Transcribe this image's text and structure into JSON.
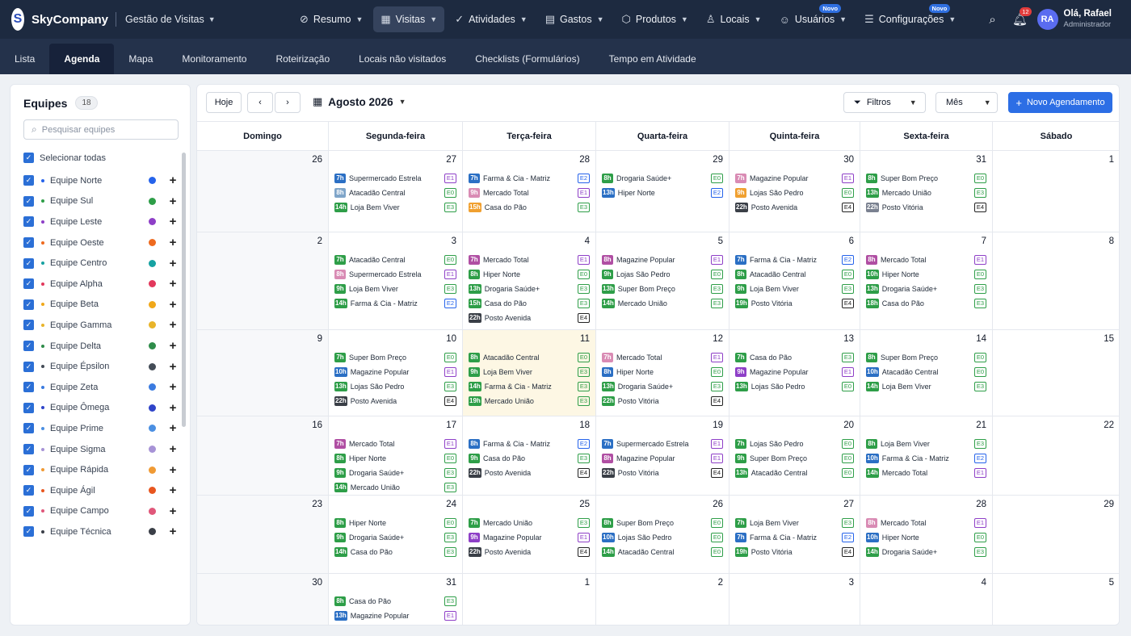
{
  "app": {
    "brand": "SkyCompany",
    "logo_letter": "S",
    "module": "Gestão de Visitas"
  },
  "nav": [
    {
      "label": "Resumo",
      "icon": "dashboard-icon"
    },
    {
      "label": "Visitas",
      "icon": "calendar-icon",
      "active": true
    },
    {
      "label": "Atividades",
      "icon": "check-circle-icon"
    },
    {
      "label": "Gastos",
      "icon": "wallet-icon"
    },
    {
      "label": "Produtos",
      "icon": "box-icon"
    },
    {
      "label": "Locais",
      "icon": "user-pin-icon"
    },
    {
      "label": "Usuários",
      "icon": "users-icon",
      "badge": "Novo"
    },
    {
      "label": "Configurações",
      "icon": "settings-icon",
      "badge": "Novo"
    }
  ],
  "notifications": "12",
  "user": {
    "initials": "RA",
    "greeting": "Olá, Rafael",
    "role": "Administrador"
  },
  "subnav": [
    "Lista",
    "Agenda",
    "Mapa",
    "Monitoramento",
    "Roteirização",
    "Locais não visitados",
    "Checklists (Formulários)",
    "Tempo em Atividade"
  ],
  "sidebar": {
    "title": "Equipes",
    "count": "18",
    "search_placeholder": "Pesquisar equipes",
    "select_all": "Selecionar todas",
    "teams": [
      {
        "name": "Equipe Norte",
        "color": "#2563eb"
      },
      {
        "name": "Equipe Sul",
        "color": "#2e9e48"
      },
      {
        "name": "Equipe Leste",
        "color": "#8e3fc7"
      },
      {
        "name": "Equipe Oeste",
        "color": "#ee6a1f"
      },
      {
        "name": "Equipe Centro",
        "color": "#17a2a2"
      },
      {
        "name": "Equipe Alpha",
        "color": "#e2385c"
      },
      {
        "name": "Equipe Beta",
        "color": "#f0a81a"
      },
      {
        "name": "Equipe Gamma",
        "color": "#e8b42a"
      },
      {
        "name": "Equipe Delta",
        "color": "#2e8c4a"
      },
      {
        "name": "Equipe Épsilon",
        "color": "#444c57"
      },
      {
        "name": "Equipe Zeta",
        "color": "#3b7be0"
      },
      {
        "name": "Equipe Ômega",
        "color": "#2f44c9"
      },
      {
        "name": "Equipe Prime",
        "color": "#4b8fe2"
      },
      {
        "name": "Equipe Sigma",
        "color": "#a793d6"
      },
      {
        "name": "Equipe Rápida",
        "color": "#f09a34"
      },
      {
        "name": "Equipe Ágil",
        "color": "#e8561f"
      },
      {
        "name": "Equipe Campo",
        "color": "#e0577a"
      },
      {
        "name": "Equipe Técnica",
        "color": "#3a3f47"
      }
    ]
  },
  "calendar": {
    "today_label": "Hoje",
    "month": "Agosto 2026",
    "filters_label": "Filtros",
    "view_label": "Mês",
    "new_label": "Novo Agendamento",
    "weekdays": [
      "Domingo",
      "Segunda-feira",
      "Terça-feira",
      "Quarta-feira",
      "Quinta-feira",
      "Sexta-feira",
      "Sábado"
    ],
    "tag_colors": {
      "E0": "#2e9e48",
      "E1": "#8e3fc7",
      "E2": "#2563eb",
      "E3": "#2e9e48",
      "E4": "#222222"
    },
    "weeks": [
      [
        {
          "d": "26"
        },
        {
          "d": "27",
          "ev": [
            {
              "t": "7h",
              "n": "Supermercado Estrela",
              "g": "E1",
              "c": "#2b6fc4"
            },
            {
              "t": "8h",
              "n": "Atacadão Central",
              "g": "E0",
              "c": "#7fa5c9"
            },
            {
              "t": "14h",
              "n": "Loja Bem Viver",
              "g": "E3",
              "c": "#2e9e48"
            }
          ]
        },
        {
          "d": "28",
          "ev": [
            {
              "t": "7h",
              "n": "Farma & Cia - Matriz",
              "g": "E2",
              "c": "#2b6fc4"
            },
            {
              "t": "9h",
              "n": "Mercado Total",
              "g": "E1",
              "c": "#d98bb4"
            },
            {
              "t": "15h",
              "n": "Casa do Pão",
              "g": "E3",
              "c": "#f0a030"
            }
          ]
        },
        {
          "d": "29",
          "ev": [
            {
              "t": "8h",
              "n": "Drogaria Saúde+",
              "g": "E0",
              "c": "#2e9e48"
            },
            {
              "t": "13h",
              "n": "Hiper Norte",
              "g": "E2",
              "c": "#2b6fc4"
            }
          ]
        },
        {
          "d": "30",
          "ev": [
            {
              "t": "7h",
              "n": "Magazine Popular",
              "g": "E1",
              "c": "#d98bb4"
            },
            {
              "t": "9h",
              "n": "Lojas São Pedro",
              "g": "E0",
              "c": "#f0a030"
            },
            {
              "t": "22h",
              "n": "Posto Avenida",
              "g": "E4",
              "c": "#3a3f47"
            }
          ]
        },
        {
          "d": "31",
          "ev": [
            {
              "t": "8h",
              "n": "Super Bom Preço",
              "g": "E0",
              "c": "#2e9e48"
            },
            {
              "t": "13h",
              "n": "Mercado União",
              "g": "E3",
              "c": "#2e9e48"
            },
            {
              "t": "22h",
              "n": "Posto Vitória",
              "g": "E4",
              "c": "#7a8190"
            }
          ]
        },
        {
          "d": "1"
        }
      ],
      [
        {
          "d": "2"
        },
        {
          "d": "3",
          "ev": [
            {
              "t": "7h",
              "n": "Atacadão Central",
              "g": "E0",
              "c": "#2e9e48"
            },
            {
              "t": "8h",
              "n": "Supermercado Estrela",
              "g": "E1",
              "c": "#d98bb4"
            },
            {
              "t": "9h",
              "n": "Loja Bem Viver",
              "g": "E3",
              "c": "#2e9e48"
            },
            {
              "t": "14h",
              "n": "Farma & Cia - Matriz",
              "g": "E2",
              "c": "#2e9e48"
            }
          ]
        },
        {
          "d": "4",
          "ev": [
            {
              "t": "7h",
              "n": "Mercado Total",
              "g": "E1",
              "c": "#b04fa3"
            },
            {
              "t": "8h",
              "n": "Hiper Norte",
              "g": "E0",
              "c": "#2e9e48"
            },
            {
              "t": "13h",
              "n": "Drogaria Saúde+",
              "g": "E3",
              "c": "#2e9e48"
            },
            {
              "t": "15h",
              "n": "Casa do Pão",
              "g": "E3",
              "c": "#2e9e48"
            },
            {
              "t": "22h",
              "n": "Posto Avenida",
              "g": "E4",
              "c": "#3a3f47"
            }
          ]
        },
        {
          "d": "5",
          "ev": [
            {
              "t": "8h",
              "n": "Magazine Popular",
              "g": "E1",
              "c": "#b04fa3"
            },
            {
              "t": "9h",
              "n": "Lojas São Pedro",
              "g": "E0",
              "c": "#2e9e48"
            },
            {
              "t": "13h",
              "n": "Super Bom Preço",
              "g": "E3",
              "c": "#2e9e48"
            },
            {
              "t": "14h",
              "n": "Mercado União",
              "g": "E3",
              "c": "#2e9e48"
            }
          ]
        },
        {
          "d": "6",
          "ev": [
            {
              "t": "7h",
              "n": "Farma & Cia - Matriz",
              "g": "E2",
              "c": "#2b6fc4"
            },
            {
              "t": "8h",
              "n": "Atacadão Central",
              "g": "E0",
              "c": "#2e9e48"
            },
            {
              "t": "9h",
              "n": "Loja Bem Viver",
              "g": "E3",
              "c": "#2e9e48"
            },
            {
              "t": "19h",
              "n": "Posto Vitória",
              "g": "E4",
              "c": "#2e9e48"
            }
          ]
        },
        {
          "d": "7",
          "ev": [
            {
              "t": "8h",
              "n": "Mercado Total",
              "g": "E1",
              "c": "#b04fa3"
            },
            {
              "t": "10h",
              "n": "Hiper Norte",
              "g": "E0",
              "c": "#2e9e48"
            },
            {
              "t": "13h",
              "n": "Drogaria Saúde+",
              "g": "E3",
              "c": "#2e9e48"
            },
            {
              "t": "18h",
              "n": "Casa do Pão",
              "g": "E3",
              "c": "#2e9e48"
            }
          ]
        },
        {
          "d": "8"
        }
      ],
      [
        {
          "d": "9"
        },
        {
          "d": "10",
          "ev": [
            {
              "t": "7h",
              "n": "Super Bom Preço",
              "g": "E0",
              "c": "#2e9e48"
            },
            {
              "t": "10h",
              "n": "Magazine Popular",
              "g": "E1",
              "c": "#2b6fc4"
            },
            {
              "t": "13h",
              "n": "Lojas São Pedro",
              "g": "E3",
              "c": "#2e9e48"
            },
            {
              "t": "22h",
              "n": "Posto Avenida",
              "g": "E4",
              "c": "#3a3f47"
            }
          ]
        },
        {
          "d": "11",
          "today": true,
          "ev": [
            {
              "t": "8h",
              "n": "Atacadão Central",
              "g": "E0",
              "c": "#2e9e48"
            },
            {
              "t": "9h",
              "n": "Loja Bem Viver",
              "g": "E3",
              "c": "#2e9e48"
            },
            {
              "t": "14h",
              "n": "Farma & Cia - Matriz",
              "g": "E3",
              "c": "#2e9e48"
            },
            {
              "t": "19h",
              "n": "Mercado União",
              "g": "E3",
              "c": "#2e9e48"
            }
          ]
        },
        {
          "d": "12",
          "ev": [
            {
              "t": "7h",
              "n": "Mercado Total",
              "g": "E1",
              "c": "#d98bb4"
            },
            {
              "t": "8h",
              "n": "Hiper Norte",
              "g": "E0",
              "c": "#2b6fc4"
            },
            {
              "t": "13h",
              "n": "Drogaria Saúde+",
              "g": "E3",
              "c": "#2e9e48"
            },
            {
              "t": "22h",
              "n": "Posto Vitória",
              "g": "E4",
              "c": "#2e9e48"
            }
          ]
        },
        {
          "d": "13",
          "ev": [
            {
              "t": "7h",
              "n": "Casa do Pão",
              "g": "E3",
              "c": "#2e9e48"
            },
            {
              "t": "9h",
              "n": "Magazine Popular",
              "g": "E1",
              "c": "#8e3fc7"
            },
            {
              "t": "13h",
              "n": "Lojas São Pedro",
              "g": "E0",
              "c": "#2e9e48"
            }
          ]
        },
        {
          "d": "14",
          "ev": [
            {
              "t": "8h",
              "n": "Super Bom Preço",
              "g": "E0",
              "c": "#2e9e48"
            },
            {
              "t": "10h",
              "n": "Atacadão Central",
              "g": "E0",
              "c": "#2b6fc4"
            },
            {
              "t": "14h",
              "n": "Loja Bem Viver",
              "g": "E3",
              "c": "#2e9e48"
            }
          ]
        },
        {
          "d": "15"
        }
      ],
      [
        {
          "d": "16"
        },
        {
          "d": "17",
          "ev": [
            {
              "t": "7h",
              "n": "Mercado Total",
              "g": "E1",
              "c": "#b04fa3"
            },
            {
              "t": "8h",
              "n": "Hiper Norte",
              "g": "E0",
              "c": "#2e9e48"
            },
            {
              "t": "9h",
              "n": "Drogaria Saúde+",
              "g": "E3",
              "c": "#2e9e48"
            },
            {
              "t": "14h",
              "n": "Mercado União",
              "g": "E3",
              "c": "#2e9e48"
            }
          ]
        },
        {
          "d": "18",
          "ev": [
            {
              "t": "8h",
              "n": "Farma & Cia - Matriz",
              "g": "E2",
              "c": "#2b6fc4"
            },
            {
              "t": "9h",
              "n": "Casa do Pão",
              "g": "E3",
              "c": "#2e9e48"
            },
            {
              "t": "22h",
              "n": "Posto Avenida",
              "g": "E4",
              "c": "#3a3f47"
            }
          ]
        },
        {
          "d": "19",
          "ev": [
            {
              "t": "7h",
              "n": "Supermercado Estrela",
              "g": "E1",
              "c": "#2b6fc4"
            },
            {
              "t": "8h",
              "n": "Magazine Popular",
              "g": "E1",
              "c": "#b04fa3"
            },
            {
              "t": "22h",
              "n": "Posto Vitória",
              "g": "E4",
              "c": "#3a3f47"
            }
          ]
        },
        {
          "d": "20",
          "ev": [
            {
              "t": "7h",
              "n": "Lojas São Pedro",
              "g": "E0",
              "c": "#2e9e48"
            },
            {
              "t": "9h",
              "n": "Super Bom Preço",
              "g": "E0",
              "c": "#2e9e48"
            },
            {
              "t": "13h",
              "n": "Atacadão Central",
              "g": "E0",
              "c": "#2e9e48"
            }
          ]
        },
        {
          "d": "21",
          "ev": [
            {
              "t": "8h",
              "n": "Loja Bem Viver",
              "g": "E3",
              "c": "#2e9e48"
            },
            {
              "t": "10h",
              "n": "Farma & Cia - Matriz",
              "g": "E2",
              "c": "#2b6fc4"
            },
            {
              "t": "14h",
              "n": "Mercado Total",
              "g": "E1",
              "c": "#2e9e48"
            }
          ]
        },
        {
          "d": "22"
        }
      ],
      [
        {
          "d": "23"
        },
        {
          "d": "24",
          "ev": [
            {
              "t": "8h",
              "n": "Hiper Norte",
              "g": "E0",
              "c": "#2e9e48"
            },
            {
              "t": "9h",
              "n": "Drogaria Saúde+",
              "g": "E3",
              "c": "#2e9e48"
            },
            {
              "t": "14h",
              "n": "Casa do Pão",
              "g": "E3",
              "c": "#2e9e48"
            }
          ]
        },
        {
          "d": "25",
          "ev": [
            {
              "t": "7h",
              "n": "Mercado União",
              "g": "E3",
              "c": "#2e9e48"
            },
            {
              "t": "9h",
              "n": "Magazine Popular",
              "g": "E1",
              "c": "#8e3fc7"
            },
            {
              "t": "22h",
              "n": "Posto Avenida",
              "g": "E4",
              "c": "#3a3f47"
            }
          ]
        },
        {
          "d": "26",
          "ev": [
            {
              "t": "8h",
              "n": "Super Bom Preço",
              "g": "E0",
              "c": "#2e9e48"
            },
            {
              "t": "10h",
              "n": "Lojas São Pedro",
              "g": "E0",
              "c": "#2b6fc4"
            },
            {
              "t": "14h",
              "n": "Atacadão Central",
              "g": "E0",
              "c": "#2e9e48"
            }
          ]
        },
        {
          "d": "27",
          "ev": [
            {
              "t": "7h",
              "n": "Loja Bem Viver",
              "g": "E3",
              "c": "#2e9e48"
            },
            {
              "t": "7h",
              "n": "Farma & Cia - Matriz",
              "g": "E2",
              "c": "#2b6fc4"
            },
            {
              "t": "19h",
              "n": "Posto Vitória",
              "g": "E4",
              "c": "#2e9e48"
            }
          ]
        },
        {
          "d": "28",
          "ev": [
            {
              "t": "8h",
              "n": "Mercado Total",
              "g": "E1",
              "c": "#d98bb4"
            },
            {
              "t": "10h",
              "n": "Hiper Norte",
              "g": "E0",
              "c": "#2b6fc4"
            },
            {
              "t": "14h",
              "n": "Drogaria Saúde+",
              "g": "E3",
              "c": "#2e9e48"
            }
          ]
        },
        {
          "d": "29"
        }
      ],
      [
        {
          "d": "30"
        },
        {
          "d": "31",
          "ev": [
            {
              "t": "8h",
              "n": "Casa do Pão",
              "g": "E3",
              "c": "#2e9e48"
            },
            {
              "t": "13h",
              "n": "Magazine Popular",
              "g": "E1",
              "c": "#2b6fc4"
            }
          ]
        },
        {
          "d": "1"
        },
        {
          "d": "2"
        },
        {
          "d": "3"
        },
        {
          "d": "4"
        },
        {
          "d": "5"
        }
      ]
    ]
  }
}
